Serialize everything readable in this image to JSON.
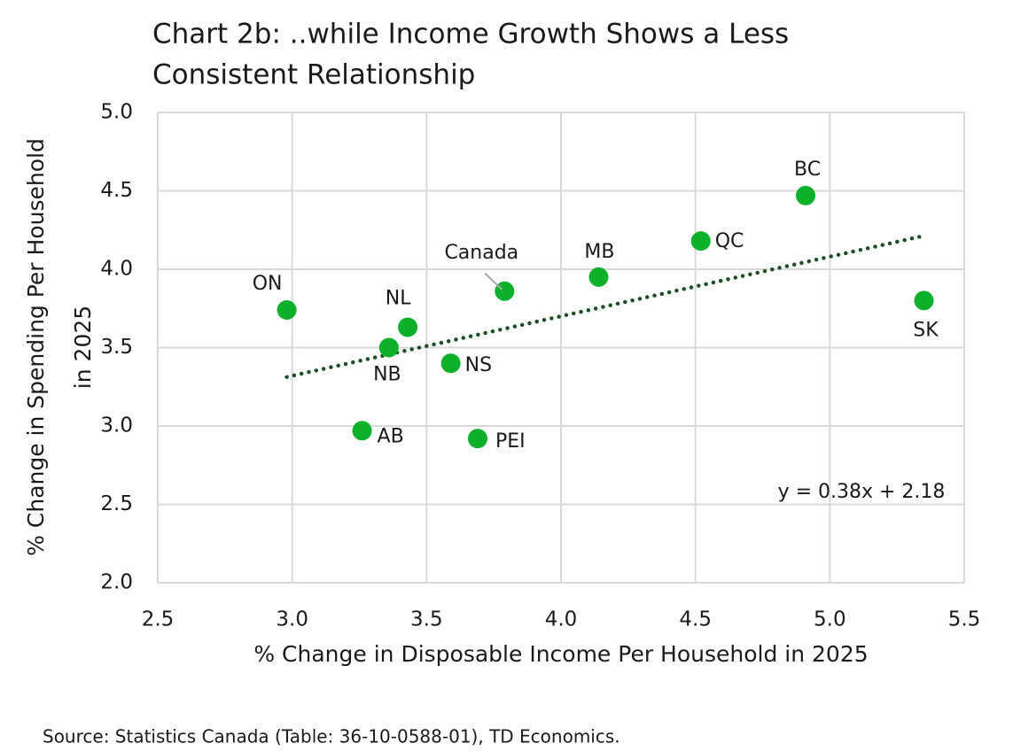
{
  "chart_data": {
    "type": "scatter",
    "title": [
      "Chart 2b: ..while Income Growth Shows a Less",
      "Consistent Relationship"
    ],
    "xlabel": "% Change in Disposable Income Per Household in 2025",
    "ylabel": [
      "% Change in Spending Per Household",
      "in 2025"
    ],
    "source": "Source: Statistics Canada (Table: 36-10-0588-01), TD Economics.",
    "point_labels": [
      "ON",
      "NB",
      "NL",
      "AB",
      "NS",
      "PEI",
      "Canada",
      "MB",
      "QC",
      "BC",
      "SK"
    ],
    "x": [
      2.98,
      3.36,
      3.43,
      3.26,
      3.59,
      3.69,
      3.79,
      4.14,
      4.52,
      4.91,
      5.35
    ],
    "values": [
      3.74,
      3.5,
      3.63,
      2.97,
      3.4,
      2.92,
      3.86,
      3.95,
      4.18,
      4.47,
      3.8
    ],
    "color": "#0db02b",
    "trendline": {
      "label": "y = 0.38x + 2.18",
      "slope": 0.38,
      "intercept": 2.18,
      "color": "#1e4d2b"
    },
    "xlim": [
      2.5,
      5.5
    ],
    "xticks": [
      2.5,
      {
        "value": 3,
        "label": "3.0"
      },
      3.5,
      {
        "value": 4,
        "label": "4.0"
      },
      4.5,
      {
        "value": 5,
        "label": "5.0"
      },
      5.5
    ],
    "ylim": [
      2,
      5
    ],
    "yticks": [
      {
        "value": 2,
        "label": "2.0"
      },
      2.5,
      {
        "value": 3,
        "label": "3.0"
      },
      3.5,
      {
        "value": 4,
        "label": "4.0"
      },
      4.5,
      {
        "value": 5,
        "label": "5.0"
      }
    ],
    "grid": true
  }
}
